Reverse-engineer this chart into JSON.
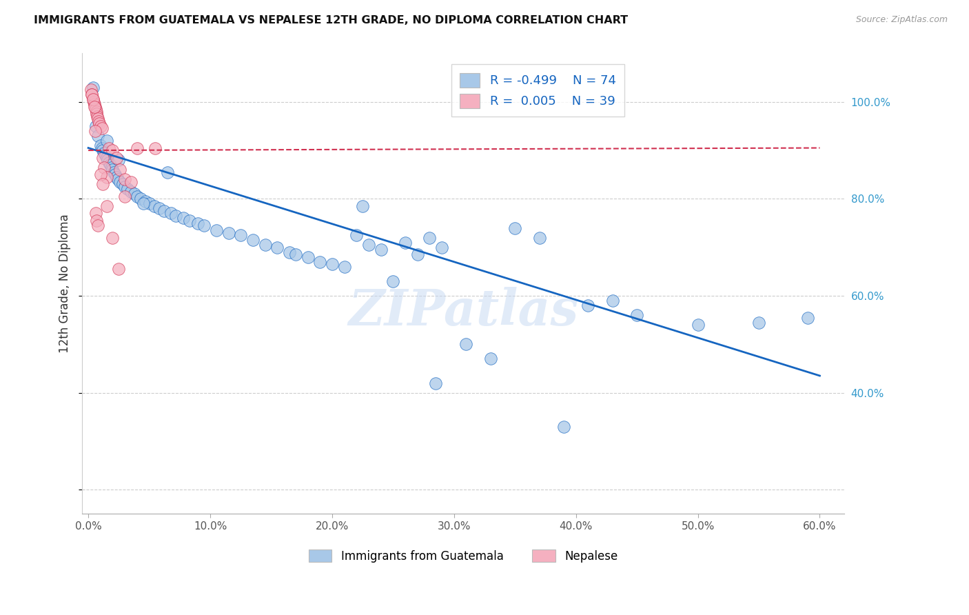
{
  "title": "IMMIGRANTS FROM GUATEMALA VS NEPALESE 12TH GRADE, NO DIPLOMA CORRELATION CHART",
  "source": "Source: ZipAtlas.com",
  "ylabel_left": "12th Grade, No Diploma",
  "xtick_vals": [
    0.0,
    10.0,
    20.0,
    30.0,
    40.0,
    50.0,
    60.0
  ],
  "ytick_vals": [
    20.0,
    40.0,
    60.0,
    80.0,
    100.0
  ],
  "ytick_labels_right": [
    "",
    "40.0%",
    "60.0%",
    "80.0%",
    "100.0%"
  ],
  "xlim": [
    -0.5,
    62.0
  ],
  "ylim": [
    15.0,
    110.0
  ],
  "legend_blue_label": "Immigrants from Guatemala",
  "legend_pink_label": "Nepalese",
  "legend_R_blue": "R = -0.499",
  "legend_N_blue": "N = 74",
  "legend_R_pink": "R =  0.005",
  "legend_N_pink": "N = 39",
  "blue_color": "#a8c8e8",
  "pink_color": "#f5b0c0",
  "blue_line_color": "#1565c0",
  "pink_line_color": "#d03050",
  "watermark": "ZIPatlas",
  "blue_scatter_x": [
    0.4,
    0.6,
    0.8,
    1.0,
    1.1,
    1.2,
    1.3,
    1.4,
    1.5,
    1.6,
    1.7,
    1.8,
    1.9,
    2.0,
    2.1,
    2.2,
    2.3,
    2.4,
    2.6,
    2.8,
    3.0,
    3.2,
    3.5,
    3.8,
    4.0,
    4.3,
    4.7,
    5.0,
    5.4,
    5.8,
    6.2,
    6.8,
    7.2,
    7.8,
    8.3,
    9.0,
    9.5,
    10.5,
    11.5,
    12.5,
    13.5,
    14.5,
    15.5,
    16.5,
    17.0,
    18.0,
    19.0,
    20.0,
    21.0,
    22.0,
    23.0,
    24.0,
    25.0,
    26.0,
    27.0,
    28.0,
    29.0,
    31.0,
    33.0,
    35.0,
    37.0,
    39.0,
    41.0,
    43.0,
    45.0,
    50.0,
    55.0,
    59.0,
    1.5,
    2.5,
    4.5,
    6.5,
    22.5,
    28.5
  ],
  "blue_scatter_y": [
    103.0,
    95.0,
    93.0,
    91.0,
    90.5,
    90.0,
    89.5,
    89.0,
    88.5,
    88.0,
    87.5,
    87.0,
    86.5,
    86.0,
    85.5,
    85.0,
    84.5,
    84.0,
    83.5,
    83.0,
    82.5,
    82.0,
    81.5,
    81.0,
    80.5,
    80.0,
    79.5,
    79.0,
    78.5,
    78.0,
    77.5,
    77.0,
    76.5,
    76.0,
    75.5,
    75.0,
    74.5,
    73.5,
    73.0,
    72.5,
    71.5,
    70.5,
    70.0,
    69.0,
    68.5,
    68.0,
    67.0,
    66.5,
    66.0,
    72.5,
    70.5,
    69.5,
    63.0,
    71.0,
    68.5,
    72.0,
    70.0,
    50.0,
    47.0,
    74.0,
    72.0,
    33.0,
    58.0,
    59.0,
    56.0,
    54.0,
    54.5,
    55.5,
    92.0,
    88.0,
    79.0,
    85.5,
    78.5,
    42.0
  ],
  "pink_scatter_x": [
    0.2,
    0.3,
    0.4,
    0.45,
    0.5,
    0.55,
    0.6,
    0.65,
    0.7,
    0.75,
    0.8,
    0.85,
    0.9,
    1.0,
    1.1,
    1.2,
    1.3,
    1.5,
    1.7,
    2.0,
    2.3,
    2.6,
    3.0,
    3.5,
    4.0,
    0.3,
    0.4,
    0.5,
    0.6,
    0.7,
    0.8,
    1.0,
    1.2,
    1.5,
    2.0,
    2.5,
    3.0,
    5.5,
    0.55
  ],
  "pink_scatter_y": [
    102.5,
    101.5,
    100.5,
    100.0,
    99.5,
    99.0,
    98.5,
    98.0,
    97.5,
    97.0,
    96.5,
    96.0,
    95.5,
    95.0,
    94.5,
    88.5,
    86.5,
    84.5,
    90.5,
    90.0,
    88.5,
    86.0,
    84.0,
    83.5,
    90.5,
    101.5,
    100.5,
    99.0,
    77.0,
    75.5,
    74.5,
    85.0,
    83.0,
    78.5,
    72.0,
    65.5,
    80.5,
    90.5,
    94.0
  ],
  "blue_trend_x0": 0.0,
  "blue_trend_y0": 90.5,
  "blue_trend_x1": 60.0,
  "blue_trend_y1": 43.5,
  "pink_trend_x0": 0.0,
  "pink_trend_y0": 90.0,
  "pink_trend_x1": 60.0,
  "pink_trend_y1": 90.5
}
